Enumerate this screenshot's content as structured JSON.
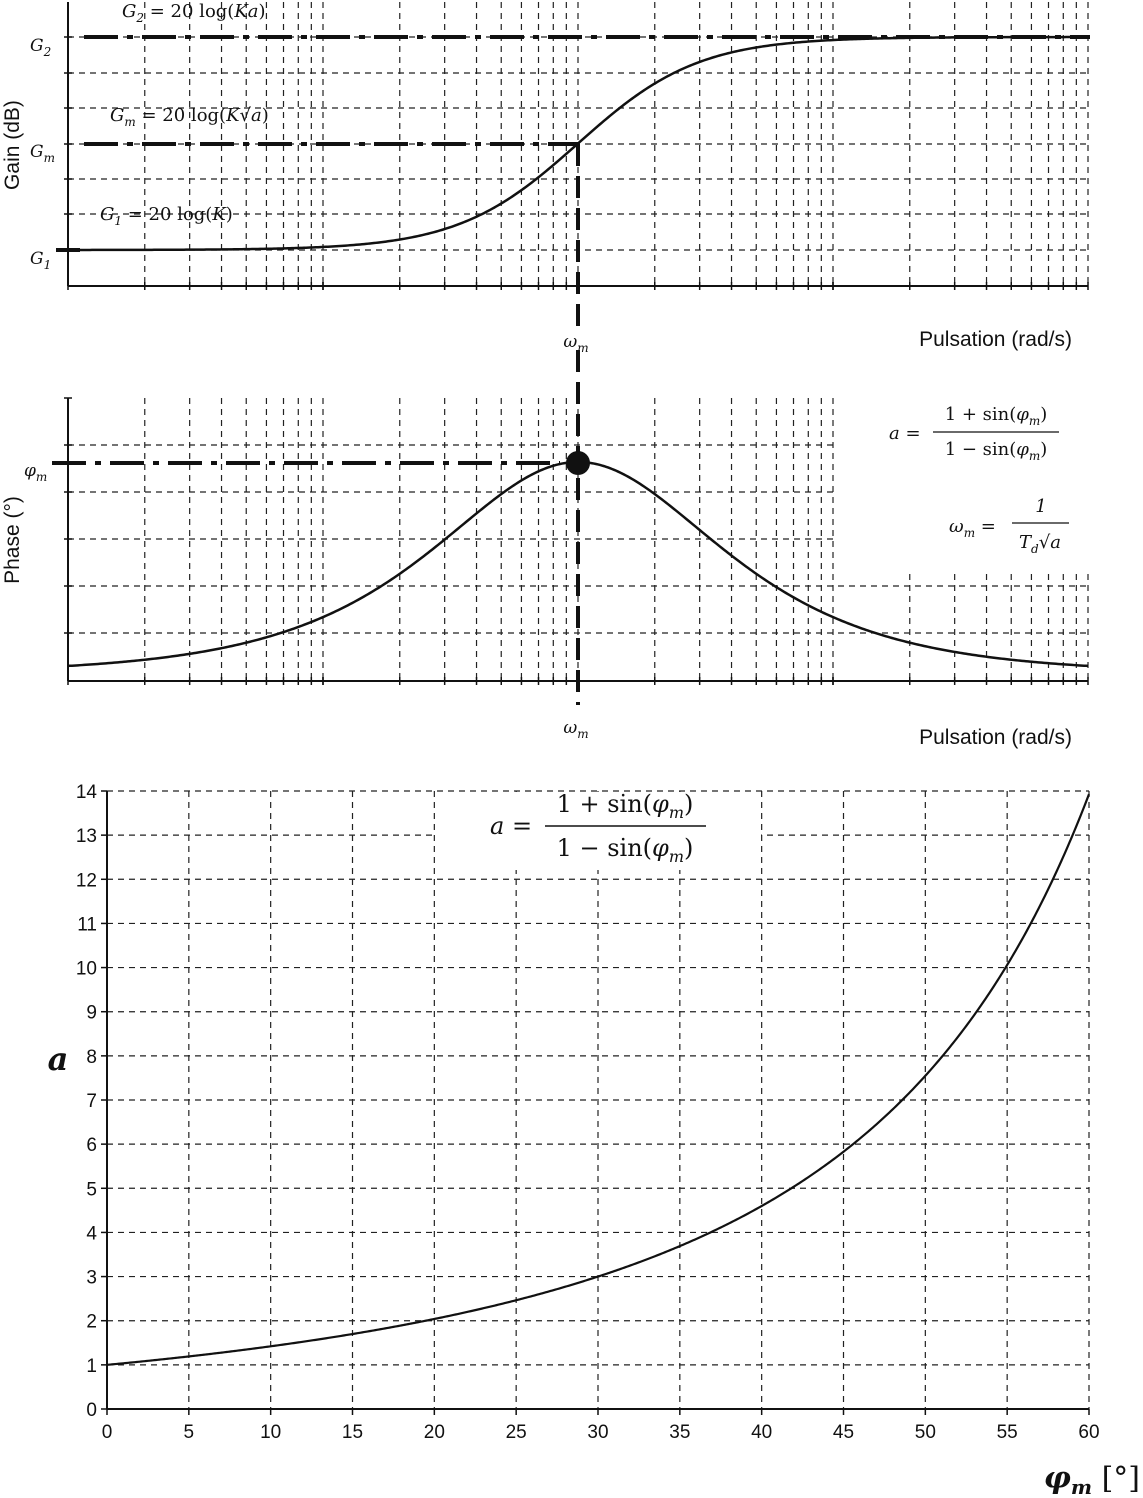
{
  "chart_data": [
    {
      "type": "line",
      "ylabel": "Gain (dB)",
      "xlabel": "Pulsation (rad/s)",
      "x_scale": "log",
      "grid": true,
      "y_markers": [
        {
          "label": "G2",
          "name": "G_2",
          "value": 1.0
        },
        {
          "label": "Gm",
          "name": "G_m",
          "value": 0.5
        },
        {
          "label": "G1",
          "name": "G_1",
          "value": 0.0
        }
      ],
      "x_marker": {
        "label": "ωm"
      },
      "annotations": [
        "G2 = 20 log(Ka)",
        "Gm = 20 log(K√a)",
        "G1 = 20 log(K)"
      ],
      "series": [
        {
          "values_note": "normalized gain between G1 and G2",
          "x_log_rel": [
            -3.0,
            -2.0,
            -1.5,
            -1.0,
            -0.5,
            0.0,
            0.5,
            1.0,
            1.5,
            2.0,
            3.0
          ],
          "y": [
            0.0,
            0.01,
            0.03,
            0.09,
            0.25,
            0.5,
            0.75,
            0.91,
            0.97,
            0.99,
            1.0
          ]
        }
      ]
    },
    {
      "type": "line",
      "ylabel": "Phase (°)",
      "xlabel": "Pulsation (rad/s)",
      "x_scale": "log",
      "grid": true,
      "y_marker": {
        "label": "φm"
      },
      "x_marker": {
        "label": "ωm"
      },
      "max_point": {
        "x_log_rel": 0,
        "label": "φm"
      },
      "formulas": [
        {
          "lhs": "a =",
          "num": "1 + sin(φm)",
          "den": "1 − sin(φm)"
        },
        {
          "lhs": "ωm =",
          "num": "1",
          "den": "Td√a"
        }
      ],
      "series": [
        {
          "values_note": "bell-shaped phase lead, peak at ωm",
          "x_log_rel": [
            -3.0,
            -2.0,
            -1.0,
            -0.5,
            0.0,
            0.5,
            1.0,
            2.0,
            3.0
          ],
          "y": [
            0.03,
            0.15,
            0.55,
            0.86,
            1.0,
            0.86,
            0.55,
            0.15,
            0.03
          ]
        }
      ]
    },
    {
      "type": "line",
      "title": "",
      "xlabel": "φm [°]",
      "ylabel": "a",
      "xlim": [
        0,
        60
      ],
      "ylim": [
        0,
        14
      ],
      "x_ticks": [
        0,
        5,
        10,
        15,
        20,
        25,
        30,
        35,
        40,
        45,
        50,
        55,
        60
      ],
      "y_ticks": [
        0,
        1,
        2,
        3,
        4,
        5,
        6,
        7,
        8,
        9,
        10,
        11,
        12,
        13,
        14
      ],
      "grid": true,
      "formula": {
        "lhs": "a =",
        "num": "1 + sin(φm)",
        "den": "1 − sin(φm)"
      },
      "series": [
        {
          "x": [
            0,
            5,
            10,
            15,
            20,
            25,
            30,
            35,
            40,
            45,
            50,
            55,
            60
          ],
          "values": [
            1.0,
            1.19,
            1.42,
            1.7,
            2.04,
            2.46,
            3.0,
            3.69,
            4.6,
            5.83,
            7.55,
            10.06,
            13.93
          ]
        }
      ]
    }
  ]
}
